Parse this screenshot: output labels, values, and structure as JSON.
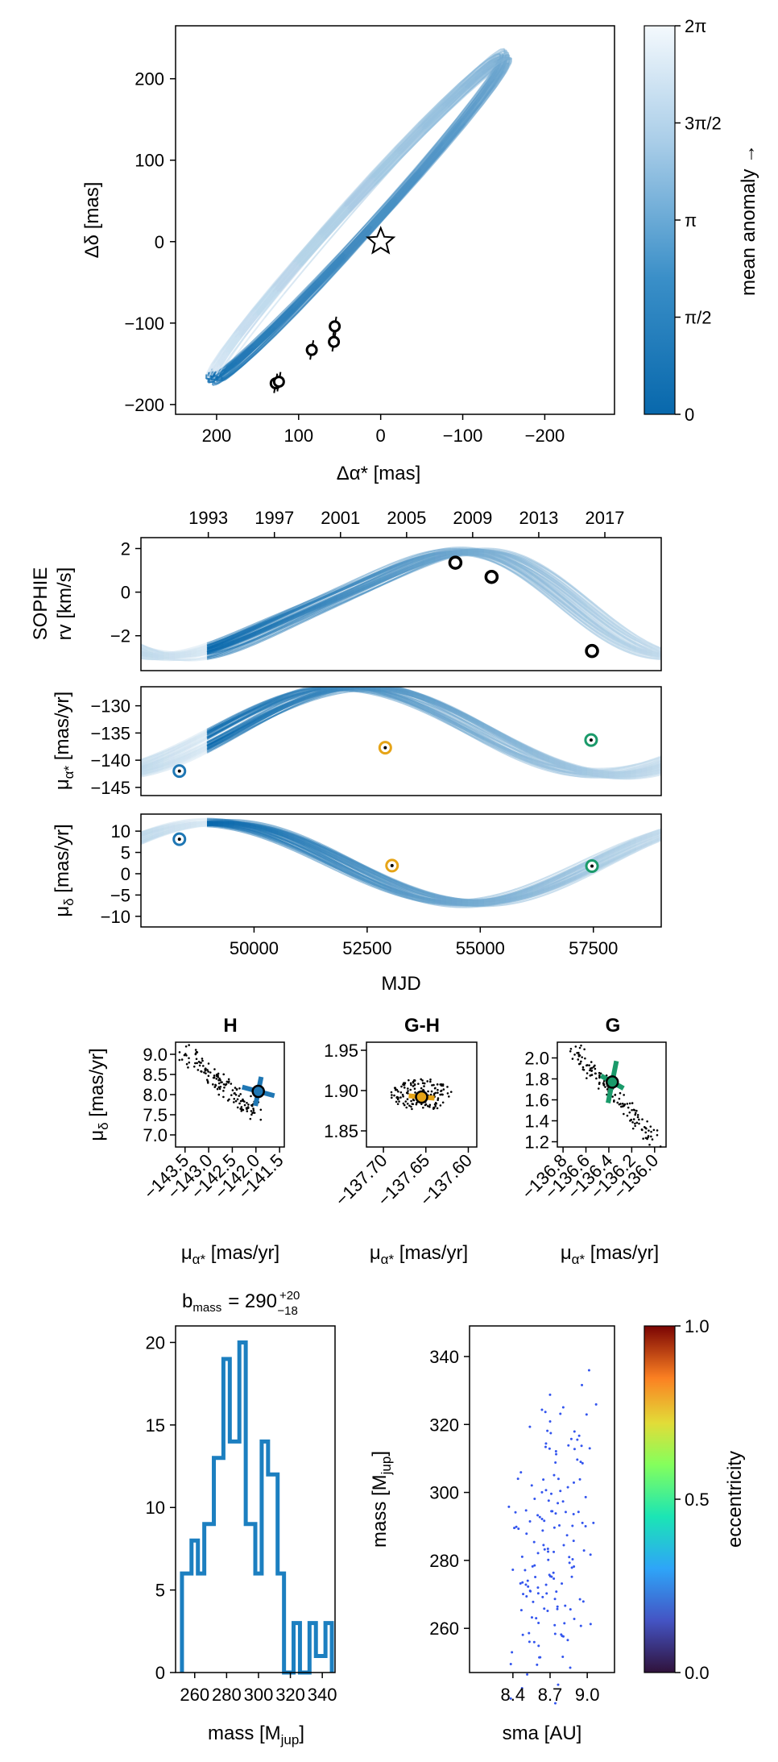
{
  "colors": {
    "orbit_dark": "#1f77b4",
    "orbit_mid": "#4a9bd0",
    "orbit_light": "#d6e8f5",
    "hipparcos": "#1f77b4",
    "hg": "#e6a417",
    "gaia": "#1a9a6a",
    "hist": "#1c7fc0",
    "scatter_pt": "#3355ee"
  },
  "chart_data": [
    {
      "id": "astrometry",
      "type": "line",
      "xlabel": "Δα* [mas]",
      "ylabel": "Δδ [mas]",
      "xlim": [
        250,
        -285
      ],
      "ylim": [
        -212,
        265
      ],
      "xticks": [
        200,
        100,
        0,
        -100,
        -200
      ],
      "xtick_labels": [
        "200",
        "100",
        "0",
        "−100",
        "−200"
      ],
      "yticks": [
        200,
        100,
        0,
        -100,
        -200
      ],
      "ytick_labels": [
        "200",
        "100",
        "0",
        "−100",
        "−200"
      ],
      "star": [
        0,
        0
      ],
      "points": [
        {
          "x": 128,
          "y": -174
        },
        {
          "x": 124,
          "y": -172
        },
        {
          "x": 84,
          "y": -133
        },
        {
          "x": 57,
          "y": -123
        },
        {
          "x": 56,
          "y": -104
        }
      ],
      "colorbar": {
        "label": "mean anomaly →",
        "ticks": [
          "0",
          "π/2",
          "π",
          "3π/2",
          "2π"
        ]
      }
    },
    {
      "id": "rv",
      "type": "line",
      "ylabel_lines": [
        "SOPHIE",
        "rv [km/s]"
      ],
      "ylim": [
        -3.6,
        2.5
      ],
      "yticks": [
        2,
        0,
        -2
      ],
      "ytick_labels": [
        "2",
        "0",
        "−2"
      ],
      "xlim": [
        47500,
        59000
      ],
      "top_axis_years": [
        "1993",
        "1997",
        "2001",
        "2005",
        "2009",
        "2013",
        "2017"
      ],
      "top_axis_mjd": [
        48989,
        50450,
        51911,
        53372,
        54832,
        56293,
        57754
      ],
      "points": [
        {
          "x": 54450,
          "y": 1.35
        },
        {
          "x": 55250,
          "y": 0.7
        },
        {
          "x": 57470,
          "y": -2.7
        }
      ]
    },
    {
      "id": "pmra",
      "type": "line",
      "ylabel": "μα* [mas/yr]",
      "ylim": [
        -146.5,
        -126.5
      ],
      "yticks": [
        -130,
        -135,
        -140,
        -145
      ],
      "ytick_labels": [
        "−130",
        "−135",
        "−140",
        "−145"
      ],
      "xlim": [
        47500,
        59000
      ],
      "points": [
        {
          "x": 48350,
          "y": -142,
          "src": "hipparcos"
        },
        {
          "x": 52900,
          "y": -137.7,
          "src": "hg"
        },
        {
          "x": 57450,
          "y": -136.3,
          "src": "gaia"
        }
      ]
    },
    {
      "id": "pmdec",
      "type": "line",
      "ylabel": "μδ [mas/yr]",
      "ylim": [
        -12.5,
        14
      ],
      "yticks": [
        10,
        5,
        0,
        -5,
        -10
      ],
      "ytick_labels": [
        "10",
        "5",
        "0",
        "−5",
        "−10"
      ],
      "xlim": [
        47500,
        59000
      ],
      "xticks": [
        50000,
        52500,
        55000,
        57500
      ],
      "xtick_labels": [
        "50000",
        "52500",
        "55000",
        "57500"
      ],
      "xlabel": "MJD",
      "points": [
        {
          "x": 48350,
          "y": 8.1,
          "src": "hipparcos"
        },
        {
          "x": 53050,
          "y": 1.9,
          "src": "hg"
        },
        {
          "x": 57470,
          "y": 1.8,
          "src": "gaia"
        }
      ]
    },
    {
      "id": "pm_h",
      "type": "scatter",
      "title": "H",
      "xlabel": "μα* [mas/yr]",
      "ylabel": "μδ [mas/yr]",
      "xlim": [
        -143.7,
        -141.4
      ],
      "ylim": [
        6.7,
        9.3
      ],
      "xticks": [
        -143.5,
        -143.0,
        -142.5,
        -142.0,
        -141.5
      ],
      "xtick_labels": [
        "−143.5",
        "−143.0",
        "−142.5",
        "−142.0",
        "−141.5"
      ],
      "yticks": [
        9.0,
        8.5,
        8.0,
        7.5,
        7.0
      ],
      "ytick_labels": [
        "9.0",
        "8.5",
        "8.0",
        "7.5",
        "7.0"
      ],
      "measurement": {
        "x": -141.95,
        "y": 8.08
      }
    },
    {
      "id": "pm_gh",
      "type": "scatter",
      "title": "G-H",
      "xlabel": "μα* [mas/yr]",
      "xlim": [
        -137.72,
        -137.59
      ],
      "ylim": [
        1.83,
        1.96
      ],
      "xticks": [
        -137.7,
        -137.65,
        -137.6
      ],
      "xtick_labels": [
        "−137.70",
        "−137.65",
        "−137.60"
      ],
      "yticks": [
        1.95,
        1.9,
        1.85
      ],
      "ytick_labels": [
        "1.95",
        "1.90",
        "1.85"
      ],
      "measurement": {
        "x": -137.655,
        "y": 1.892
      }
    },
    {
      "id": "pm_g",
      "type": "scatter",
      "title": "G",
      "xlabel": "μα* [mas/yr]",
      "xlim": [
        -136.85,
        -135.9
      ],
      "ylim": [
        1.15,
        2.15
      ],
      "xticks": [
        -136.8,
        -136.6,
        -136.4,
        -136.2,
        -136.0
      ],
      "xtick_labels": [
        "−136.8",
        "−136.6",
        "−136.4",
        "−136.2",
        "−136.0"
      ],
      "yticks": [
        2.0,
        1.8,
        1.6,
        1.4,
        1.2
      ],
      "ytick_labels": [
        "2.0",
        "1.8",
        "1.6",
        "1.4",
        "1.2"
      ],
      "measurement": {
        "x": -136.37,
        "y": 1.77
      }
    },
    {
      "id": "mass_hist",
      "type": "bar",
      "title": "b_mass = 290 +20 −18",
      "title_main": "b",
      "title_sub": "mass",
      "title_value": "= 290",
      "title_plus": "+20",
      "title_minus": "−18",
      "xlabel": "mass [M_jup]",
      "xlabel_main": "mass [M",
      "xlabel_sub": "jup",
      "xlabel_end": "]",
      "xlim": [
        248,
        348
      ],
      "ylim": [
        0,
        21
      ],
      "xticks": [
        260,
        280,
        300,
        320,
        340
      ],
      "xtick_labels": [
        "260",
        "280",
        "300",
        "320",
        "340"
      ],
      "yticks": [
        0,
        5,
        10,
        15,
        20
      ],
      "ytick_labels": [
        "0",
        "5",
        "10",
        "15",
        "20"
      ],
      "bin_edges": [
        252,
        258,
        262,
        266,
        272,
        278,
        282,
        288,
        292,
        298,
        302,
        306,
        312,
        316,
        322,
        326,
        332,
        336,
        342,
        346
      ],
      "counts": [
        6,
        8,
        6,
        9,
        13,
        19,
        14,
        20,
        9,
        6,
        14,
        12,
        6,
        0,
        3,
        0,
        3,
        1,
        3
      ]
    },
    {
      "id": "mass_sma",
      "type": "scatter",
      "xlabel": "sma [AU]",
      "ylabel": "mass [M_jup]",
      "ylabel_main": "mass [M",
      "ylabel_sub": "jup",
      "ylabel_end": "]",
      "xlim": [
        8.05,
        9.22
      ],
      "ylim": [
        247,
        349
      ],
      "xticks": [
        8.4,
        8.7,
        9.0
      ],
      "xtick_labels": [
        "8.4",
        "8.7",
        "9.0"
      ],
      "yticks": [
        340,
        320,
        300,
        280,
        260
      ],
      "ytick_labels": [
        "340",
        "320",
        "300",
        "280",
        "260"
      ],
      "colorbar": {
        "label": "eccentricity",
        "ticks": [
          "0.0",
          "0.5",
          "1.0"
        ]
      }
    }
  ]
}
